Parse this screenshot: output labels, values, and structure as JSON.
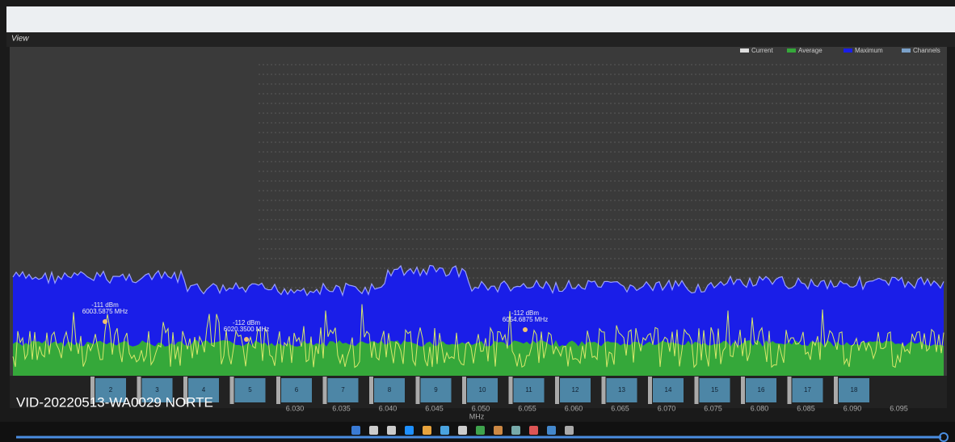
{
  "header": {
    "title": "View"
  },
  "legend": [
    "Current",
    "Average",
    "Maximum",
    "Channels"
  ],
  "peaks": [
    {
      "level": "-111 dBm",
      "freq": "6003.5875 MHz"
    },
    {
      "level": "-112 dBm",
      "freq": "6020.3500 MHz"
    },
    {
      "level": "-112 dBm",
      "freq": "6054.6875 MHz"
    }
  ],
  "channels": [
    "2",
    "3",
    "4",
    "5",
    "6",
    "7",
    "8",
    "9",
    "10",
    "11",
    "12",
    "13",
    "14",
    "15",
    "16",
    "17",
    "18"
  ],
  "axis": {
    "ticks": [
      "6.030",
      "6.035",
      "6.040",
      "6.045",
      "6.050",
      "6.055",
      "6.060",
      "6.065",
      "6.070",
      "6.075",
      "6.080",
      "6.085",
      "6.090",
      "6.095"
    ],
    "label": "MHz"
  },
  "overlay": {
    "caption": "VID-20220513-WA0029 NORTE"
  }
}
